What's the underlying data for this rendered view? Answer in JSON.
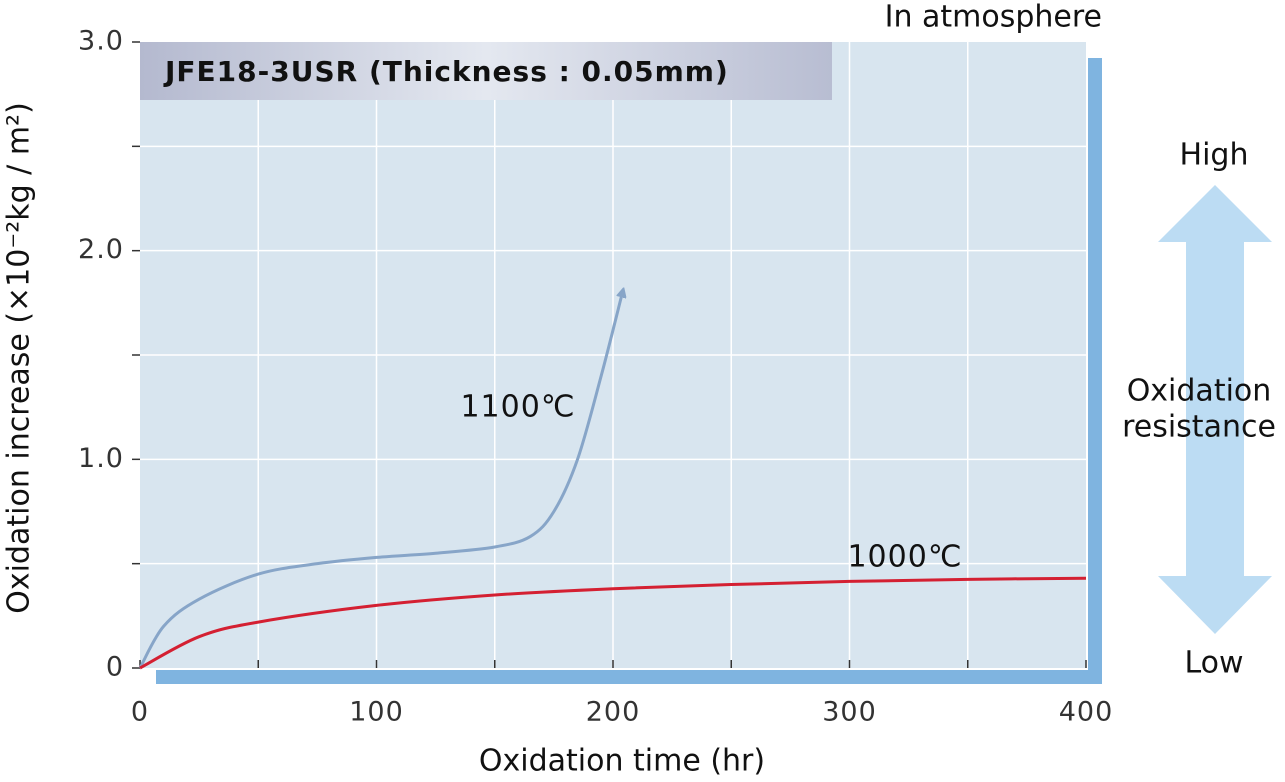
{
  "chart_data": {
    "type": "line",
    "title": "JFE18-3USR (Thickness : 0.05mm)",
    "subtitle": "In atmosphere",
    "x_label": "Oxidation time (hr)",
    "y_label": "Oxidation increase (×10⁻²kg / m²)",
    "xlim": [
      0,
      400
    ],
    "ylim": [
      0,
      3
    ],
    "xticks": [
      0,
      100,
      200,
      300,
      400
    ],
    "x_minor_ticks": [
      50,
      150,
      250,
      350
    ],
    "yticks": [
      0,
      {
        "value": 1,
        "label": "1.0"
      },
      {
        "value": 2,
        "label": "2.0"
      },
      {
        "value": 3,
        "label": "3.0"
      }
    ],
    "y_minor_ticks": [
      0.5,
      1.5,
      2.5
    ],
    "grid": true,
    "series": [
      {
        "name": "1100℃",
        "color": "#87a5c8",
        "x": [
          0,
          10,
          25,
          50,
          75,
          100,
          125,
          150,
          165,
          175,
          185,
          195,
          204
        ],
        "values": [
          0,
          0.2,
          0.33,
          0.45,
          0.5,
          0.53,
          0.55,
          0.58,
          0.63,
          0.75,
          1.0,
          1.4,
          1.8
        ]
      },
      {
        "name": "1000℃",
        "color": "#d42032",
        "x": [
          0,
          25,
          50,
          100,
          150,
          200,
          250,
          300,
          350,
          400
        ],
        "values": [
          0,
          0.15,
          0.22,
          0.3,
          0.35,
          0.38,
          0.4,
          0.415,
          0.425,
          0.43
        ]
      }
    ],
    "side_scale": {
      "top": "High",
      "label": [
        "Oxidation",
        "resistance"
      ],
      "bottom": "Low"
    }
  }
}
